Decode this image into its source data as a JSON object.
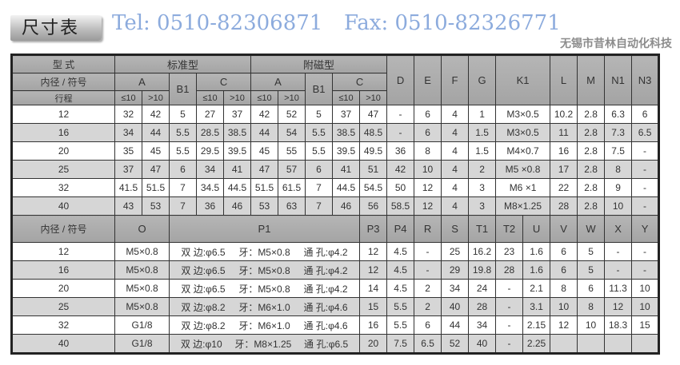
{
  "title": "尺寸表",
  "section1": {
    "type_label": "型 式",
    "standard_label": "标准型",
    "magnetic_label": "附磁型",
    "bore_label": "内径 / 符号",
    "stroke_label": "行程",
    "a": "A",
    "b1": "B1",
    "c": "C",
    "le10": "≤10",
    "gt10": ">10",
    "right_headers": [
      "D",
      "E",
      "F",
      "G",
      "K1",
      "L",
      "M",
      "N1",
      "N3"
    ],
    "rows": [
      [
        "12",
        "32",
        "42",
        "5",
        "27",
        "37",
        "42",
        "52",
        "5",
        "37",
        "47",
        "-",
        "6",
        "4",
        "1",
        "M3×0.5",
        "10.2",
        "2.8",
        "6.3",
        "6"
      ],
      [
        "16",
        "34",
        "44",
        "5.5",
        "28.5",
        "38.5",
        "44",
        "54",
        "5.5",
        "38.5",
        "48.5",
        "-",
        "6",
        "4",
        "1.5",
        "M3×0.5",
        "11",
        "2.8",
        "7.3",
        "6.5"
      ],
      [
        "20",
        "35",
        "45",
        "5.5",
        "29.5",
        "39.5",
        "45",
        "55",
        "5.5",
        "39.5",
        "49.5",
        "36",
        "8",
        "4",
        "1.5",
        "M4×0.7",
        "16",
        "2.8",
        "7.5",
        "-"
      ],
      [
        "25",
        "37",
        "47",
        "6",
        "34",
        "41",
        "47",
        "57",
        "6",
        "41",
        "51",
        "42",
        "10",
        "4",
        "2",
        "M5 ×0.8",
        "17",
        "2.8",
        "8",
        "-"
      ],
      [
        "32",
        "41.5",
        "51.5",
        "7",
        "34.5",
        "44.5",
        "51.5",
        "61.5",
        "7",
        "44.5",
        "54.5",
        "50",
        "12",
        "4",
        "3",
        "M6 ×1",
        "22",
        "2.8",
        "9",
        "-"
      ],
      [
        "40",
        "43",
        "53",
        "7",
        "36",
        "46",
        "53",
        "63",
        "7",
        "46",
        "56",
        "58.5",
        "12",
        "4",
        "3",
        "M8×1.25",
        "28",
        "2.8",
        "10",
        "-"
      ]
    ]
  },
  "section2": {
    "bore_label": "内径 / 符号",
    "headers": [
      "O",
      "P1",
      "P3",
      "P4",
      "R",
      "S",
      "T1",
      "T2",
      "U",
      "V",
      "W",
      "X",
      "Y"
    ],
    "rows": [
      {
        "bore": "12",
        "o": "M5×0.8",
        "p1": [
          "双 边:φ6.5",
          "牙：M5×0.8",
          "通 孔:φ4.2"
        ],
        "rest": [
          "12",
          "4.5",
          "-",
          "25",
          "16.2",
          "23",
          "1.6",
          "6",
          "5",
          "-",
          "-"
        ]
      },
      {
        "bore": "16",
        "o": "M5×0.8",
        "p1": [
          "双 边:φ6.5",
          "牙：M5×0.8",
          "通 孔:φ4.2"
        ],
        "rest": [
          "12",
          "4.5",
          "-",
          "29",
          "19.8",
          "28",
          "1.6",
          "6",
          "5",
          "-",
          "-"
        ]
      },
      {
        "bore": "20",
        "o": "M5×0.8",
        "p1": [
          "双 边:φ6.5",
          "牙：M5×0.8",
          "通 孔:φ4.2"
        ],
        "rest": [
          "14",
          "4.5",
          "2",
          "34",
          "24",
          "-",
          "2.1",
          "8",
          "6",
          "11.3",
          "10"
        ]
      },
      {
        "bore": "25",
        "o": "M5×0.8",
        "p1": [
          "双 边:φ8.2",
          "牙：M6×1.0",
          "通 孔:φ4.6"
        ],
        "rest": [
          "15",
          "5.5",
          "2",
          "40",
          "28",
          "-",
          "3.1",
          "10",
          "8",
          "12",
          "10"
        ]
      },
      {
        "bore": "32",
        "o": "G1/8",
        "p1": [
          "双 边:φ8.2",
          "牙：M6×1.0",
          "通 孔:φ4.6"
        ],
        "rest": [
          "16",
          "5.5",
          "6",
          "44",
          "34",
          "-",
          "2.15",
          "12",
          "10",
          "18.3",
          "15"
        ]
      },
      {
        "bore": "40",
        "o": "G1/8",
        "p1": [
          "双 边:φ10",
          "牙：M8×1.25",
          "通 孔:φ6.5"
        ],
        "rest": [
          "20",
          "7.5",
          "6.5",
          "52",
          "40",
          "-",
          "2.25",
          "",
          "",
          "",
          ""
        ]
      }
    ]
  },
  "watermarks": {
    "tel": "Tel: 0510-82306871",
    "fax": "Fax: 0510-82326771",
    "company": "无锡市昔林自动化科技"
  }
}
